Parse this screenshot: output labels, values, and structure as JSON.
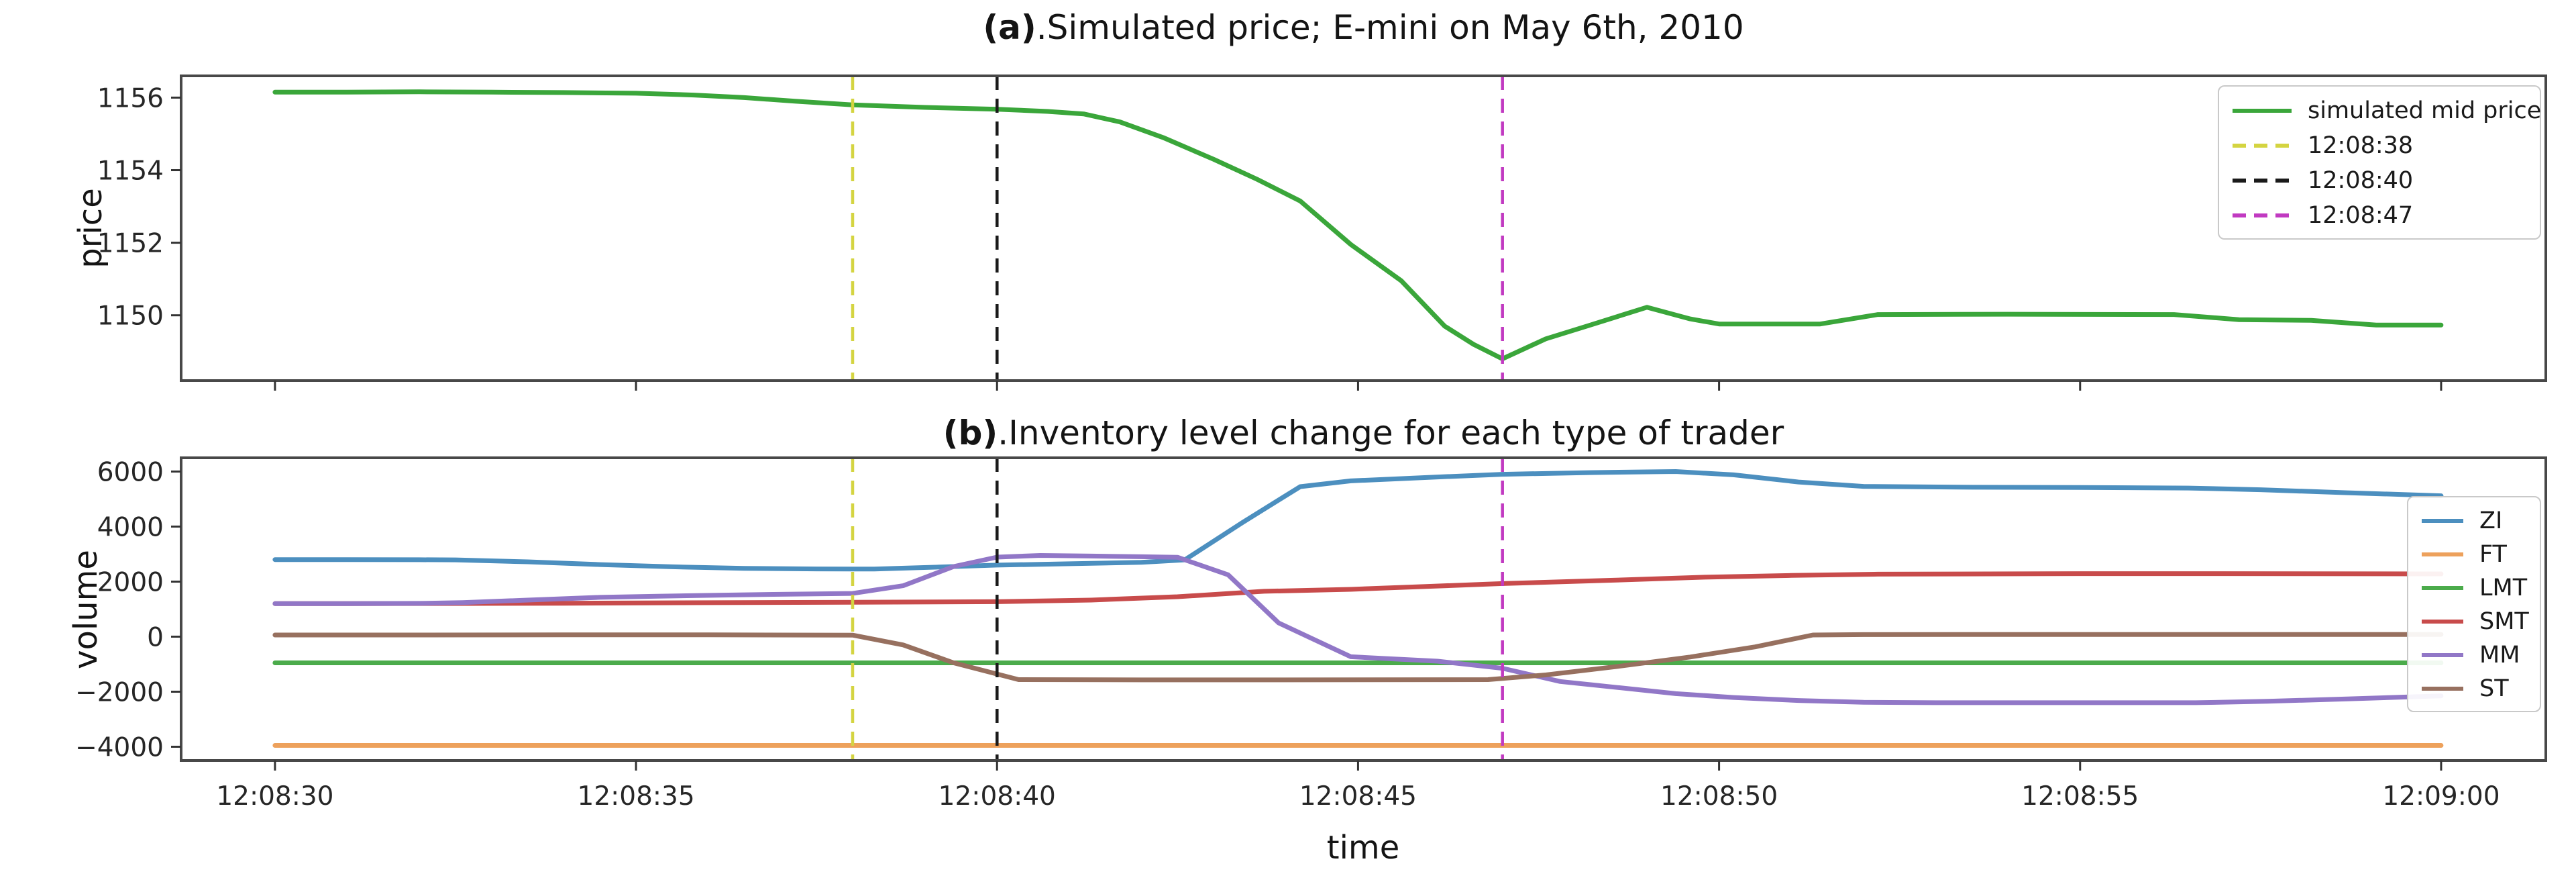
{
  "figure": {
    "panel_a": {
      "title_bold": "(a)",
      "title_rest": ".Simulated price; E-mini on May 6th, 2010",
      "ylabel": "price",
      "legend": [
        {
          "label": "simulated mid price",
          "color": "#3aa63a",
          "dash": false
        },
        {
          "label": "12:08:38",
          "color": "#d4d441",
          "dash": true
        },
        {
          "label": "12:08:40",
          "color": "#1a1a1a",
          "dash": true
        },
        {
          "label": "12:08:47",
          "color": "#c13ac1",
          "dash": true
        }
      ]
    },
    "panel_b": {
      "title_bold": "(b)",
      "title_rest": ".Inventory level change for each type of trader",
      "ylabel": "volume",
      "xlabel": "time",
      "legend": [
        {
          "label": "ZI",
          "color": "#4c8fbf",
          "dash": false
        },
        {
          "label": "FT",
          "color": "#eda15c",
          "dash": false
        },
        {
          "label": "LMT",
          "color": "#4bab4b",
          "dash": false
        },
        {
          "label": "SMT",
          "color": "#c84b4b",
          "dash": false
        },
        {
          "label": "MM",
          "color": "#9177c7",
          "dash": false
        },
        {
          "label": "ST",
          "color": "#97705f",
          "dash": false
        }
      ]
    }
  },
  "chart_data": [
    {
      "type": "line",
      "title": "(a).Simulated price; E-mini on May 6th, 2010",
      "xlabel": "",
      "ylabel": "price",
      "x_unit": "seconds after 12:08:30",
      "xlim": [
        -1.3,
        31.45
      ],
      "ylim": [
        1148.2,
        1156.6
      ],
      "xticks": [
        0,
        5,
        10,
        15,
        20,
        25,
        30
      ],
      "xtick_labels": [
        "12:08:30",
        "12:08:35",
        "12:08:40",
        "12:08:45",
        "12:08:50",
        "12:08:55",
        "12:09:00"
      ],
      "show_xtick_labels": false,
      "yticks": [
        1156,
        1154,
        1152,
        1150
      ],
      "ytick_labels": [
        "1156",
        "1154",
        "1152",
        "1150"
      ],
      "grid": false,
      "legend_position": "upper right",
      "series": [
        {
          "name": "simulated mid price",
          "color": "#3aa63a",
          "points": [
            [
              0,
              1156.15
            ],
            [
              1,
              1156.15
            ],
            [
              2,
              1156.16
            ],
            [
              3,
              1156.15
            ],
            [
              4,
              1156.14
            ],
            [
              5,
              1156.12
            ],
            [
              5.8,
              1156.07
            ],
            [
              6.5,
              1156.0
            ],
            [
              7.2,
              1155.9
            ],
            [
              8,
              1155.8
            ],
            [
              9,
              1155.73
            ],
            [
              10,
              1155.68
            ],
            [
              10.7,
              1155.62
            ],
            [
              11.2,
              1155.55
            ],
            [
              11.7,
              1155.33
            ],
            [
              12.3,
              1154.9
            ],
            [
              13,
              1154.3
            ],
            [
              13.6,
              1153.75
            ],
            [
              14.2,
              1153.15
            ],
            [
              14.9,
              1151.95
            ],
            [
              15.6,
              1150.95
            ],
            [
              16.2,
              1149.7
            ],
            [
              16.6,
              1149.2
            ],
            [
              17,
              1148.8
            ],
            [
              17.6,
              1149.35
            ],
            [
              18.2,
              1149.72
            ],
            [
              19,
              1150.22
            ],
            [
              19.6,
              1149.9
            ],
            [
              20,
              1149.76
            ],
            [
              21.4,
              1149.76
            ],
            [
              22.2,
              1150.02
            ],
            [
              24,
              1150.03
            ],
            [
              26.3,
              1150.02
            ],
            [
              27.2,
              1149.88
            ],
            [
              28.2,
              1149.86
            ],
            [
              29.1,
              1149.73
            ],
            [
              30,
              1149.73
            ]
          ]
        }
      ],
      "vlines": [
        {
          "x": 8,
          "label": "12:08:38",
          "color": "#d4d441"
        },
        {
          "x": 10,
          "label": "12:08:40",
          "color": "#1a1a1a"
        },
        {
          "x": 17,
          "label": "12:08:47",
          "color": "#c13ac1"
        }
      ]
    },
    {
      "type": "line",
      "title": "(b).Inventory level change for each type of trader",
      "xlabel": "time",
      "ylabel": "volume",
      "x_unit": "seconds after 12:08:30",
      "xlim": [
        -1.3,
        31.45
      ],
      "ylim": [
        -4500,
        6500
      ],
      "xticks": [
        0,
        5,
        10,
        15,
        20,
        25,
        30
      ],
      "xtick_labels": [
        "12:08:30",
        "12:08:35",
        "12:08:40",
        "12:08:45",
        "12:08:50",
        "12:08:55",
        "12:09:00"
      ],
      "show_xtick_labels": true,
      "yticks": [
        6000,
        4000,
        2000,
        0,
        -2000,
        -4000
      ],
      "ytick_labels": [
        "6000",
        "4000",
        "2000",
        "0",
        "−2000",
        "−4000"
      ],
      "grid": false,
      "legend_position": "right",
      "series": [
        {
          "name": "ZI",
          "color": "#4c8fbf",
          "points": [
            [
              0,
              2800
            ],
            [
              1,
              2800
            ],
            [
              2,
              2795
            ],
            [
              2.5,
              2790
            ],
            [
              3.5,
              2720
            ],
            [
              4.5,
              2620
            ],
            [
              5.5,
              2540
            ],
            [
              6.5,
              2480
            ],
            [
              7.5,
              2460
            ],
            [
              8.3,
              2455
            ],
            [
              9.2,
              2530
            ],
            [
              10,
              2600
            ],
            [
              11,
              2650
            ],
            [
              12,
              2700
            ],
            [
              12.6,
              2790
            ],
            [
              13.4,
              4150
            ],
            [
              14.2,
              5450
            ],
            [
              14.9,
              5660
            ],
            [
              16,
              5790
            ],
            [
              17,
              5900
            ],
            [
              18.2,
              5960
            ],
            [
              19.4,
              6000
            ],
            [
              20.2,
              5880
            ],
            [
              21.1,
              5620
            ],
            [
              22,
              5460
            ],
            [
              23.5,
              5430
            ],
            [
              25,
              5420
            ],
            [
              26.5,
              5400
            ],
            [
              27.5,
              5340
            ],
            [
              28.7,
              5230
            ],
            [
              30,
              5120
            ]
          ]
        },
        {
          "name": "FT",
          "color": "#eda15c",
          "points": [
            [
              0,
              -3950
            ],
            [
              30,
              -3950
            ]
          ]
        },
        {
          "name": "LMT",
          "color": "#4bab4b",
          "points": [
            [
              0,
              -950
            ],
            [
              30,
              -950
            ]
          ]
        },
        {
          "name": "SMT",
          "color": "#c84b4b",
          "points": [
            [
              0,
              1200
            ],
            [
              2,
              1205
            ],
            [
              4,
              1215
            ],
            [
              6,
              1235
            ],
            [
              8,
              1250
            ],
            [
              10,
              1270
            ],
            [
              11.3,
              1330
            ],
            [
              12.5,
              1450
            ],
            [
              13.7,
              1650
            ],
            [
              14.9,
              1720
            ],
            [
              16,
              1830
            ],
            [
              17,
              1930
            ],
            [
              18.5,
              2050
            ],
            [
              19.8,
              2160
            ],
            [
              21,
              2225
            ],
            [
              22.2,
              2270
            ],
            [
              25,
              2290
            ],
            [
              27,
              2290
            ],
            [
              30,
              2280
            ]
          ]
        },
        {
          "name": "MM",
          "color": "#9177c7",
          "points": [
            [
              0,
              1200
            ],
            [
              1,
              1200
            ],
            [
              2,
              1210
            ],
            [
              2.6,
              1240
            ],
            [
              3.5,
              1330
            ],
            [
              4.5,
              1430
            ],
            [
              5.3,
              1470
            ],
            [
              6.2,
              1510
            ],
            [
              7,
              1540
            ],
            [
              8,
              1570
            ],
            [
              8.7,
              1850
            ],
            [
              9.4,
              2550
            ],
            [
              10,
              2890
            ],
            [
              10.6,
              2950
            ],
            [
              11.3,
              2930
            ],
            [
              12,
              2905
            ],
            [
              12.5,
              2885
            ],
            [
              13.2,
              2250
            ],
            [
              13.9,
              500
            ],
            [
              14.9,
              -730
            ],
            [
              16.1,
              -890
            ],
            [
              17,
              -1150
            ],
            [
              17.8,
              -1630
            ],
            [
              18.6,
              -1850
            ],
            [
              19.4,
              -2070
            ],
            [
              20.2,
              -2210
            ],
            [
              21.1,
              -2320
            ],
            [
              22,
              -2385
            ],
            [
              23,
              -2400
            ],
            [
              26.6,
              -2400
            ],
            [
              27.6,
              -2350
            ],
            [
              28.7,
              -2260
            ],
            [
              30,
              -2150
            ]
          ]
        },
        {
          "name": "ST",
          "color": "#97705f",
          "points": [
            [
              0,
              60
            ],
            [
              2,
              60
            ],
            [
              4,
              65
            ],
            [
              6,
              65
            ],
            [
              8,
              55
            ],
            [
              8.7,
              -300
            ],
            [
              9.4,
              -950
            ],
            [
              10.3,
              -1560
            ],
            [
              12,
              -1570
            ],
            [
              14,
              -1570
            ],
            [
              16.8,
              -1560
            ],
            [
              17.6,
              -1390
            ],
            [
              18.6,
              -1080
            ],
            [
              19.6,
              -740
            ],
            [
              20.5,
              -370
            ],
            [
              21.3,
              60
            ],
            [
              22,
              75
            ],
            [
              25,
              80
            ],
            [
              28,
              80
            ],
            [
              30,
              80
            ]
          ]
        }
      ],
      "vlines": [
        {
          "x": 8,
          "label": "12:08:38",
          "color": "#d4d441"
        },
        {
          "x": 10,
          "label": "12:08:40",
          "color": "#1a1a1a"
        },
        {
          "x": 17,
          "label": "12:08:47",
          "color": "#c13ac1"
        }
      ]
    }
  ]
}
